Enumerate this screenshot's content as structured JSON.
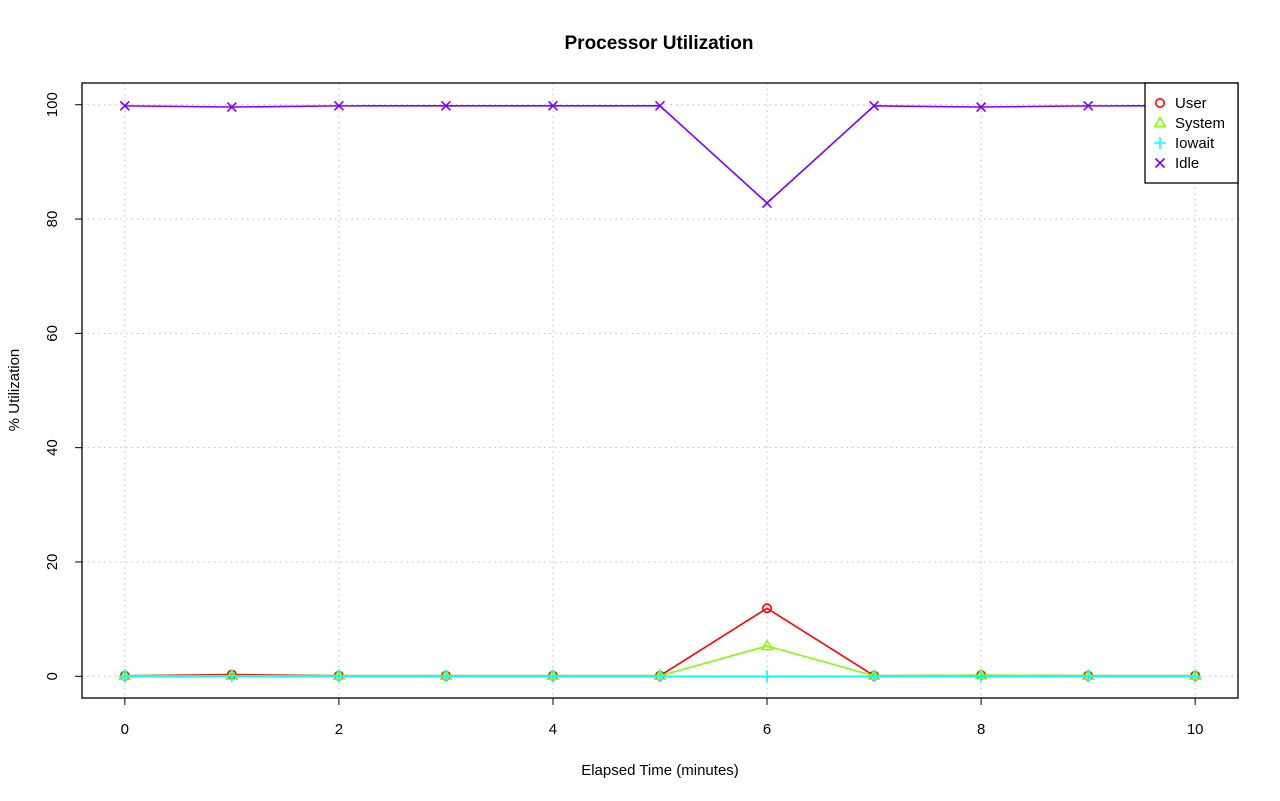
{
  "chart_data": {
    "type": "line",
    "title": "Processor Utilization",
    "xlabel": "Elapsed Time (minutes)",
    "ylabel": "% Utilization",
    "x": [
      0,
      1,
      2,
      3,
      4,
      5,
      6,
      7,
      8,
      9,
      10
    ],
    "xlim": [
      -0.4,
      10.4
    ],
    "ylim": [
      -3.8,
      103.8
    ],
    "x_ticks": [
      0,
      2,
      4,
      6,
      8,
      10
    ],
    "y_ticks": [
      0,
      20,
      40,
      60,
      80,
      100
    ],
    "grid": true,
    "legend_position": "top-right",
    "series": [
      {
        "name": "User",
        "color": "#ff0000",
        "marker": "circle",
        "values": [
          0.1,
          0.3,
          0.1,
          0.1,
          0.1,
          0.1,
          11.9,
          0.1,
          0.2,
          0.1,
          0.1
        ]
      },
      {
        "name": "System",
        "color": "#80ff00",
        "marker": "triangle",
        "values": [
          0.1,
          0.1,
          0.1,
          0.1,
          0.1,
          0.1,
          5.3,
          0.1,
          0.2,
          0.1,
          0.1
        ]
      },
      {
        "name": "Iowait",
        "color": "#00ffff",
        "marker": "plus",
        "values": [
          0,
          0,
          0,
          0,
          0,
          0,
          0,
          0,
          0,
          0,
          0
        ]
      },
      {
        "name": "Idle",
        "color": "#8000ff",
        "marker": "cross",
        "values": [
          99.8,
          99.6,
          99.8,
          99.8,
          99.8,
          99.8,
          82.8,
          99.8,
          99.6,
          99.8,
          99.8
        ]
      }
    ]
  }
}
